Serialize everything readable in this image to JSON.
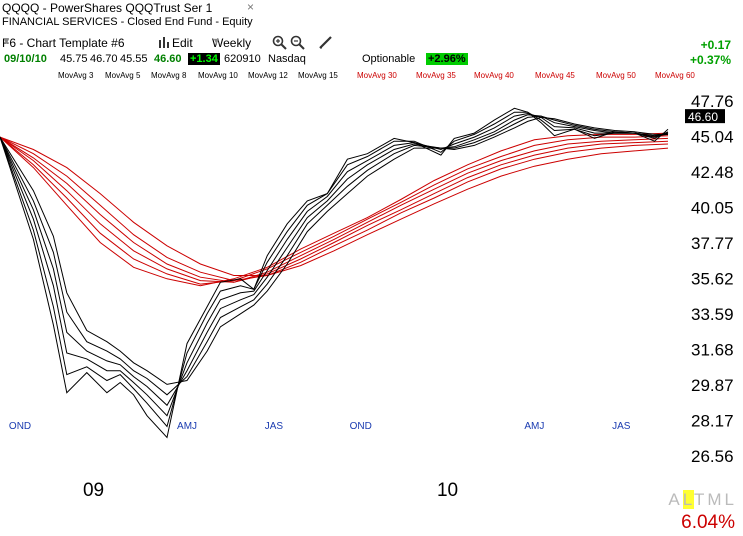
{
  "header": {
    "title": "QQQQ - PowerShares QQQTrust Ser 1",
    "close": "×",
    "subtitle": "FINANCIAL SERVICES - Closed End Fund - Equity"
  },
  "toolbar": {
    "template": "F6 - Chart Template #6",
    "edit": "Edit",
    "period": "Weekly"
  },
  "quote": {
    "date": "09/10/10",
    "open": "45.75",
    "high": "46.70",
    "low": "45.55",
    "last": "46.60",
    "change": "+1.34",
    "volume": "620910",
    "exchange": "Nasdaq",
    "optionable": "Optionable",
    "pct_change": "+2.96%",
    "right_change": "+0.17",
    "right_pct": "+0.37%"
  },
  "ma_legend": [
    {
      "label": "MovAvg 3",
      "color": "#000000"
    },
    {
      "label": "MovAvg 5",
      "color": "#000000"
    },
    {
      "label": "MovAvg 8",
      "color": "#000000"
    },
    {
      "label": "MovAvg 10",
      "color": "#000000"
    },
    {
      "label": "MovAvg 12",
      "color": "#000000"
    },
    {
      "label": "MovAvg 15",
      "color": "#000000"
    },
    {
      "label": "MovAvg 30",
      "color": "#cc0000"
    },
    {
      "label": "MovAvg 35",
      "color": "#cc0000"
    },
    {
      "label": "MovAvg 40",
      "color": "#cc0000"
    },
    {
      "label": "MovAvg 45",
      "color": "#cc0000"
    },
    {
      "label": "MovAvg 50",
      "color": "#cc0000"
    },
    {
      "label": "MovAvg 60",
      "color": "#cc0000"
    }
  ],
  "footer": {
    "altml": [
      "A",
      "L",
      "T",
      "M",
      "L"
    ],
    "bottom_pct": "6.04%"
  },
  "chart_data": {
    "type": "line",
    "yticks": [
      "47.76",
      "45.04",
      "42.48",
      "40.05",
      "37.77",
      "35.62",
      "33.59",
      "31.68",
      "29.87",
      "28.17",
      "26.56"
    ],
    "ylim": [
      26.56,
      47.76
    ],
    "last_price_label": "46.60",
    "x_labels": [
      {
        "label": "OND",
        "kind": "quarter",
        "x": 3
      },
      {
        "label": "09",
        "kind": "year",
        "x": 14
      },
      {
        "label": "AMJ",
        "kind": "quarter",
        "x": 28
      },
      {
        "label": "JAS",
        "kind": "quarter",
        "x": 41
      },
      {
        "label": "OND",
        "kind": "quarter",
        "x": 54
      },
      {
        "label": "10",
        "kind": "year",
        "x": 67
      },
      {
        "label": "AMJ",
        "kind": "quarter",
        "x": 80
      },
      {
        "label": "JAS",
        "kind": "quarter",
        "x": 93
      }
    ],
    "xlim": [
      0,
      100
    ],
    "short_ma_color": "#000000",
    "long_ma_color": "#cc0000",
    "series": [
      {
        "period": 3,
        "color": "#000000",
        "x": [
          0,
          5,
          8,
          10,
          13,
          16,
          18,
          20,
          22,
          25,
          28,
          31,
          33,
          36,
          38,
          40,
          43,
          46,
          49,
          52,
          55,
          59,
          62,
          66,
          68,
          71,
          74,
          77,
          79,
          81,
          83,
          86,
          89,
          92,
          95,
          98,
          100
        ],
        "y": [
          45.0,
          38.0,
          33.0,
          29.5,
          30.5,
          29.5,
          30.0,
          29.4,
          28.4,
          27.4,
          32.0,
          34.0,
          35.4,
          35.6,
          35.0,
          37.0,
          39.0,
          40.5,
          41.0,
          43.4,
          43.8,
          44.9,
          44.6,
          43.7,
          44.9,
          45.3,
          46.3,
          47.2,
          46.9,
          46.1,
          45.1,
          45.6,
          44.9,
          45.4,
          45.3,
          44.7,
          45.6
        ]
      },
      {
        "period": 5,
        "color": "#000000",
        "x": [
          0,
          5,
          8,
          10,
          13,
          16,
          18,
          20,
          22,
          25,
          28,
          31,
          33,
          36,
          38,
          40,
          43,
          46,
          49,
          52,
          55,
          59,
          62,
          66,
          68,
          71,
          74,
          77,
          79,
          81,
          83,
          86,
          89,
          92,
          95,
          98,
          100
        ],
        "y": [
          45.0,
          38.6,
          34.0,
          30.4,
          30.8,
          30.1,
          30.4,
          29.7,
          29.0,
          27.9,
          31.5,
          33.6,
          34.9,
          35.2,
          35.0,
          36.6,
          38.5,
          40.2,
          41.0,
          43.0,
          43.6,
          44.7,
          44.7,
          43.9,
          44.7,
          45.2,
          46.0,
          46.9,
          46.9,
          46.3,
          45.5,
          45.6,
          45.1,
          45.3,
          45.3,
          44.9,
          45.4
        ]
      },
      {
        "period": 8,
        "color": "#000000",
        "x": [
          0,
          5,
          8,
          10,
          13,
          16,
          18,
          20,
          22,
          25,
          28,
          31,
          33,
          36,
          38,
          40,
          43,
          46,
          49,
          52,
          55,
          59,
          62,
          66,
          68,
          71,
          74,
          77,
          79,
          81,
          83,
          86,
          89,
          92,
          95,
          98,
          100
        ],
        "y": [
          45.0,
          39.3,
          35.2,
          31.5,
          31.2,
          30.6,
          30.6,
          30.0,
          29.4,
          28.4,
          31.0,
          33.1,
          34.4,
          34.8,
          34.9,
          36.1,
          38.0,
          39.8,
          40.8,
          42.5,
          43.3,
          44.4,
          44.6,
          44.1,
          44.5,
          45.0,
          45.7,
          46.6,
          46.8,
          46.5,
          45.8,
          45.7,
          45.3,
          45.3,
          45.3,
          45.0,
          45.3
        ]
      },
      {
        "period": 10,
        "color": "#000000",
        "x": [
          0,
          5,
          8,
          10,
          13,
          16,
          18,
          20,
          22,
          25,
          28,
          31,
          33,
          36,
          38,
          40,
          43,
          46,
          49,
          52,
          55,
          59,
          62,
          66,
          68,
          71,
          74,
          77,
          79,
          81,
          83,
          86,
          89,
          92,
          95,
          98,
          100
        ],
        "y": [
          45.0,
          39.9,
          36.2,
          32.6,
          31.6,
          31.1,
          30.9,
          30.3,
          29.8,
          28.9,
          30.6,
          32.6,
          33.9,
          34.4,
          34.7,
          35.7,
          37.5,
          39.4,
          40.5,
          42.0,
          43.0,
          44.1,
          44.5,
          44.2,
          44.3,
          44.8,
          45.4,
          46.3,
          46.7,
          46.6,
          46.1,
          45.8,
          45.5,
          45.3,
          45.3,
          45.1,
          45.3
        ]
      },
      {
        "period": 12,
        "color": "#000000",
        "x": [
          0,
          5,
          8,
          10,
          13,
          16,
          18,
          20,
          22,
          25,
          28,
          31,
          33,
          36,
          38,
          40,
          43,
          46,
          49,
          52,
          55,
          59,
          62,
          66,
          68,
          71,
          74,
          77,
          79,
          81,
          83,
          86,
          89,
          92,
          95,
          98,
          100
        ],
        "y": [
          45.0,
          40.5,
          37.2,
          33.7,
          32.1,
          31.6,
          31.2,
          30.6,
          30.2,
          29.4,
          30.3,
          32.1,
          33.4,
          34.0,
          34.4,
          35.3,
          37.0,
          39.0,
          40.2,
          41.5,
          42.6,
          43.8,
          44.4,
          44.2,
          44.2,
          44.6,
          45.2,
          46.0,
          46.5,
          46.6,
          46.3,
          45.9,
          45.6,
          45.4,
          45.3,
          45.1,
          45.2
        ]
      },
      {
        "period": 15,
        "color": "#000000",
        "x": [
          0,
          5,
          8,
          10,
          13,
          16,
          18,
          20,
          22,
          25,
          28,
          31,
          33,
          36,
          38,
          40,
          43,
          46,
          49,
          52,
          55,
          59,
          62,
          66,
          68,
          71,
          74,
          77,
          79,
          81,
          83,
          86,
          89,
          92,
          95,
          98,
          100
        ],
        "y": [
          45.0,
          41.2,
          38.2,
          34.8,
          32.7,
          32.1,
          31.6,
          31.0,
          30.6,
          29.9,
          30.1,
          31.6,
          32.9,
          33.6,
          34.1,
          34.9,
          36.5,
          38.5,
          39.8,
          41.0,
          42.2,
          43.4,
          44.2,
          44.2,
          44.1,
          44.4,
          45.0,
          45.7,
          46.2,
          46.5,
          46.4,
          46.0,
          45.7,
          45.5,
          45.4,
          45.2,
          45.2
        ]
      },
      {
        "period": 30,
        "color": "#cc0000",
        "x": [
          0,
          5,
          10,
          15,
          20,
          25,
          30,
          35,
          40,
          45,
          50,
          55,
          60,
          65,
          70,
          75,
          80,
          85,
          90,
          95,
          100
        ],
        "y": [
          45.0,
          42.8,
          40.2,
          37.8,
          36.3,
          35.6,
          35.2,
          35.6,
          36.3,
          37.4,
          38.4,
          39.4,
          40.6,
          41.9,
          43.0,
          44.0,
          44.8,
          45.1,
          45.2,
          45.2,
          45.3
        ]
      },
      {
        "period": 35,
        "color": "#cc0000",
        "x": [
          0,
          5,
          10,
          15,
          20,
          25,
          30,
          35,
          40,
          45,
          50,
          55,
          60,
          65,
          70,
          75,
          80,
          85,
          90,
          95,
          100
        ],
        "y": [
          45.0,
          43.0,
          40.7,
          38.4,
          36.8,
          35.9,
          35.3,
          35.5,
          36.2,
          37.2,
          38.2,
          39.3,
          40.4,
          41.6,
          42.7,
          43.6,
          44.4,
          44.8,
          45.0,
          45.0,
          45.1
        ]
      },
      {
        "period": 40,
        "color": "#cc0000",
        "x": [
          0,
          5,
          10,
          15,
          20,
          25,
          30,
          35,
          40,
          45,
          50,
          55,
          60,
          65,
          70,
          75,
          80,
          85,
          90,
          95,
          100
        ],
        "y": [
          45.0,
          43.3,
          41.2,
          39.0,
          37.3,
          36.2,
          35.5,
          35.4,
          36.0,
          37.0,
          38.0,
          39.1,
          40.2,
          41.3,
          42.4,
          43.3,
          44.0,
          44.5,
          44.7,
          44.8,
          44.9
        ]
      },
      {
        "period": 45,
        "color": "#cc0000",
        "x": [
          0,
          5,
          10,
          15,
          20,
          25,
          30,
          35,
          40,
          45,
          50,
          55,
          60,
          65,
          70,
          75,
          80,
          85,
          90,
          95,
          100
        ],
        "y": [
          45.0,
          43.5,
          41.7,
          39.6,
          37.8,
          36.5,
          35.7,
          35.4,
          35.9,
          36.8,
          37.8,
          38.9,
          39.9,
          41.0,
          42.1,
          43.0,
          43.7,
          44.2,
          44.5,
          44.6,
          44.7
        ]
      },
      {
        "period": 50,
        "color": "#cc0000",
        "x": [
          0,
          5,
          10,
          15,
          20,
          25,
          30,
          35,
          40,
          45,
          50,
          55,
          60,
          65,
          70,
          75,
          80,
          85,
          90,
          95,
          100
        ],
        "y": [
          45.0,
          43.8,
          42.2,
          40.2,
          38.3,
          36.9,
          36.0,
          35.5,
          35.8,
          36.6,
          37.6,
          38.6,
          39.7,
          40.7,
          41.8,
          42.7,
          43.4,
          43.9,
          44.2,
          44.4,
          44.5
        ]
      },
      {
        "period": 60,
        "color": "#cc0000",
        "x": [
          0,
          5,
          10,
          15,
          20,
          25,
          30,
          35,
          40,
          45,
          50,
          55,
          60,
          65,
          70,
          75,
          80,
          85,
          90,
          95,
          100
        ],
        "y": [
          45.0,
          44.1,
          42.8,
          41.0,
          39.1,
          37.6,
          36.5,
          35.8,
          35.8,
          36.4,
          37.3,
          38.3,
          39.3,
          40.3,
          41.3,
          42.2,
          42.9,
          43.4,
          43.8,
          44.0,
          44.2
        ]
      }
    ]
  }
}
